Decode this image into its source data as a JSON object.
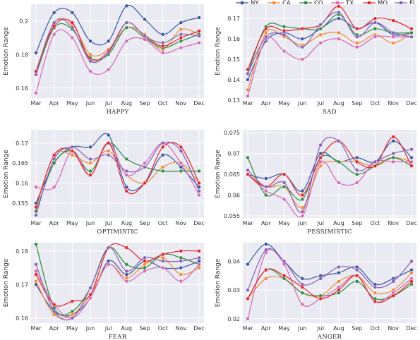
{
  "chart_data": [
    {
      "type": "line",
      "title": "HAPPY",
      "ylabel": "Emotion Range",
      "ylim": [
        0.154,
        0.21
      ],
      "yticks": [
        "0.16",
        "0.18",
        "0.2"
      ],
      "categories": [
        "Mar",
        "Apr",
        "May",
        "Jun",
        "Jul",
        "Aug",
        "Sep",
        "Oct",
        "Nov",
        "Dec"
      ],
      "series": [
        {
          "name": "NY",
          "values": [
            0.181,
            0.205,
            0.205,
            0.188,
            0.188,
            0.209,
            0.201,
            0.192,
            0.199,
            0.202
          ]
        },
        {
          "name": "CA",
          "values": [
            0.17,
            0.199,
            0.198,
            0.18,
            0.183,
            0.196,
            0.192,
            0.183,
            0.195,
            0.192
          ]
        },
        {
          "name": "CO",
          "values": [
            0.168,
            0.196,
            0.195,
            0.178,
            0.18,
            0.196,
            0.19,
            0.184,
            0.188,
            0.192
          ]
        },
        {
          "name": "TX",
          "values": [
            0.157,
            0.192,
            0.19,
            0.17,
            0.171,
            0.188,
            0.189,
            0.181,
            0.184,
            0.187
          ]
        },
        {
          "name": "MO",
          "values": [
            0.17,
            0.197,
            0.199,
            0.177,
            0.182,
            0.199,
            0.191,
            0.185,
            0.19,
            0.194
          ]
        },
        {
          "name": "FL",
          "values": [
            0.168,
            0.199,
            0.196,
            0.176,
            0.181,
            0.199,
            0.191,
            0.187,
            0.192,
            0.191
          ]
        }
      ]
    },
    {
      "type": "line",
      "title": "SAD",
      "ylabel": "Emotion Range",
      "ylim": [
        0.131,
        0.177
      ],
      "yticks": [
        "0.13",
        "0.14",
        "0.15",
        "0.16",
        "0.17"
      ],
      "categories": [
        "Mar",
        "Apr",
        "May",
        "Jun",
        "Jul",
        "Aug",
        "Sep",
        "Oct",
        "Nov",
        "Dec"
      ],
      "series": [
        {
          "name": "NY",
          "values": [
            0.14,
            0.159,
            0.163,
            0.16,
            0.165,
            0.17,
            0.165,
            0.168,
            0.162,
            0.163
          ]
        },
        {
          "name": "CA",
          "values": [
            0.135,
            0.163,
            0.161,
            0.157,
            0.162,
            0.163,
            0.158,
            0.162,
            0.158,
            0.163
          ]
        },
        {
          "name": "CO",
          "values": [
            0.143,
            0.166,
            0.166,
            0.165,
            0.165,
            0.172,
            0.162,
            0.165,
            0.163,
            0.163
          ]
        },
        {
          "name": "TX",
          "values": [
            0.132,
            0.16,
            0.154,
            0.15,
            0.158,
            0.16,
            0.156,
            0.161,
            0.161,
            0.161
          ]
        },
        {
          "name": "MO",
          "values": [
            0.145,
            0.165,
            0.164,
            0.165,
            0.167,
            0.176,
            0.165,
            0.17,
            0.169,
            0.165
          ]
        },
        {
          "name": "FL",
          "values": [
            0.143,
            0.161,
            0.162,
            0.156,
            0.167,
            0.173,
            0.161,
            0.168,
            0.163,
            0.161
          ]
        }
      ]
    },
    {
      "type": "line",
      "title": "OPTIMISTIC",
      "ylabel": "Emotion Range",
      "ylim": [
        0.1513,
        0.1733
      ],
      "yticks": [
        "0.155",
        "0.16",
        "0.165",
        "0.17"
      ],
      "categories": [
        "Mar",
        "Apr",
        "May",
        "Jun",
        "Jul",
        "Aug",
        "Sep",
        "Oct",
        "Nov",
        "Dec"
      ],
      "series": [
        {
          "name": "NY",
          "values": [
            0.155,
            0.165,
            0.169,
            0.169,
            0.172,
            0.159,
            0.16,
            0.167,
            0.164,
            0.159
          ]
        },
        {
          "name": "CA",
          "values": [
            0.154,
            0.167,
            0.167,
            0.165,
            0.168,
            0.162,
            0.16,
            0.164,
            0.165,
            0.16
          ]
        },
        {
          "name": "CO",
          "values": [
            0.153,
            0.165,
            0.168,
            0.163,
            0.17,
            0.166,
            0.164,
            0.163,
            0.163,
            0.163
          ]
        },
        {
          "name": "TX",
          "values": [
            0.159,
            0.159,
            0.168,
            0.162,
            0.17,
            0.162,
            0.165,
            0.17,
            0.165,
            0.157
          ]
        },
        {
          "name": "MO",
          "values": [
            0.154,
            0.167,
            0.168,
            0.162,
            0.17,
            0.158,
            0.16,
            0.169,
            0.169,
            0.16
          ]
        },
        {
          "name": "FL",
          "values": [
            0.152,
            0.166,
            0.169,
            0.166,
            0.167,
            0.163,
            0.164,
            0.17,
            0.168,
            0.158
          ]
        }
      ]
    },
    {
      "type": "line",
      "title": "PESSIMISTIC",
      "ylabel": "Emotion Range",
      "ylim": [
        0.0545,
        0.0757
      ],
      "yticks": [
        "0.055",
        "0.06",
        "0.065",
        "0.07",
        "0.075"
      ],
      "categories": [
        "Mar",
        "Apr",
        "May",
        "Jun",
        "Jul",
        "Aug",
        "Sep",
        "Oct",
        "Nov",
        "Dec"
      ],
      "series": [
        {
          "name": "NY",
          "values": [
            0.065,
            0.064,
            0.065,
            0.061,
            0.07,
            0.068,
            0.069,
            0.068,
            0.073,
            0.069
          ]
        },
        {
          "name": "CA",
          "values": [
            0.065,
            0.062,
            0.062,
            0.057,
            0.067,
            0.068,
            0.068,
            0.067,
            0.069,
            0.068
          ]
        },
        {
          "name": "CO",
          "values": [
            0.069,
            0.06,
            0.062,
            0.059,
            0.069,
            0.068,
            0.065,
            0.067,
            0.069,
            0.067
          ]
        },
        {
          "name": "TX",
          "values": [
            0.065,
            0.061,
            0.059,
            0.055,
            0.068,
            0.063,
            0.063,
            0.068,
            0.068,
            0.068
          ]
        },
        {
          "name": "MO",
          "values": [
            0.065,
            0.062,
            0.065,
            0.06,
            0.069,
            0.073,
            0.068,
            0.067,
            0.074,
            0.067
          ]
        },
        {
          "name": "FL",
          "values": [
            0.066,
            0.062,
            0.063,
            0.056,
            0.072,
            0.073,
            0.066,
            0.068,
            0.07,
            0.071
          ]
        }
      ]
    },
    {
      "type": "line",
      "title": "FEAR",
      "ylabel": "Emotion Range",
      "ylim": [
        0.1585,
        0.1825
      ],
      "yticks": [
        "0.16",
        "0.17",
        "0.18"
      ],
      "categories": [
        "Mar",
        "Apr",
        "May",
        "Jun",
        "Jul",
        "Aug",
        "Sep",
        "Oct",
        "Nov",
        "Dec"
      ],
      "series": [
        {
          "name": "NY",
          "values": [
            0.17,
            0.162,
            0.161,
            0.166,
            0.177,
            0.173,
            0.177,
            0.175,
            0.175,
            0.177
          ]
        },
        {
          "name": "CA",
          "values": [
            0.171,
            0.161,
            0.161,
            0.167,
            0.176,
            0.172,
            0.176,
            0.178,
            0.173,
            0.175
          ]
        },
        {
          "name": "CO",
          "values": [
            0.182,
            0.163,
            0.162,
            0.169,
            0.181,
            0.176,
            0.175,
            0.179,
            0.178,
            0.176
          ]
        },
        {
          "name": "TX",
          "values": [
            0.174,
            0.164,
            0.16,
            0.166,
            0.176,
            0.171,
            0.174,
            0.175,
            0.171,
            0.176
          ]
        },
        {
          "name": "MO",
          "values": [
            0.173,
            0.164,
            0.165,
            0.167,
            0.181,
            0.181,
            0.177,
            0.179,
            0.18,
            0.18
          ]
        },
        {
          "name": "FL",
          "values": [
            0.176,
            0.162,
            0.16,
            0.169,
            0.181,
            0.174,
            0.178,
            0.177,
            0.177,
            0.178
          ]
        }
      ]
    },
    {
      "type": "line",
      "title": "ANGER",
      "ylabel": "Emotion Range",
      "ylim": [
        0.0185,
        0.0465
      ],
      "yticks": [
        "0.02",
        "0.03",
        "0.04"
      ],
      "categories": [
        "Mar",
        "Apr",
        "May",
        "Jun",
        "Jul",
        "Aug",
        "Sep",
        "Oct",
        "Nov",
        "Dec"
      ],
      "series": [
        {
          "name": "NY",
          "values": [
            0.039,
            0.046,
            0.04,
            0.034,
            0.035,
            0.036,
            0.038,
            0.032,
            0.034,
            0.037
          ]
        },
        {
          "name": "CA",
          "values": [
            0.027,
            0.034,
            0.034,
            0.029,
            0.028,
            0.033,
            0.035,
            0.029,
            0.03,
            0.036
          ]
        },
        {
          "name": "CO",
          "values": [
            0.027,
            0.037,
            0.034,
            0.029,
            0.028,
            0.029,
            0.033,
            0.027,
            0.028,
            0.032
          ]
        },
        {
          "name": "TX",
          "values": [
            0.02,
            0.043,
            0.039,
            0.025,
            0.027,
            0.031,
            0.035,
            0.026,
            0.029,
            0.034
          ]
        },
        {
          "name": "MO",
          "values": [
            0.027,
            0.037,
            0.035,
            0.031,
            0.027,
            0.03,
            0.035,
            0.026,
            0.028,
            0.033
          ]
        },
        {
          "name": "FL",
          "values": [
            0.03,
            0.044,
            0.04,
            0.032,
            0.034,
            0.038,
            0.037,
            0.031,
            0.033,
            0.04
          ]
        }
      ]
    }
  ],
  "legend": {
    "placement": "top-right",
    "items": [
      {
        "name": "NY",
        "color": "#3a55a4"
      },
      {
        "name": "CA",
        "color": "#f28a35"
      },
      {
        "name": "CO",
        "color": "#2e8b3e"
      },
      {
        "name": "TX",
        "color": "#d668b4"
      },
      {
        "name": "MO",
        "color": "#e3252a"
      },
      {
        "name": "FL",
        "color": "#8a5fb6"
      }
    ]
  },
  "style": {
    "background": "#eaeaf2",
    "grid": "#ffffff",
    "grid_on": true
  }
}
